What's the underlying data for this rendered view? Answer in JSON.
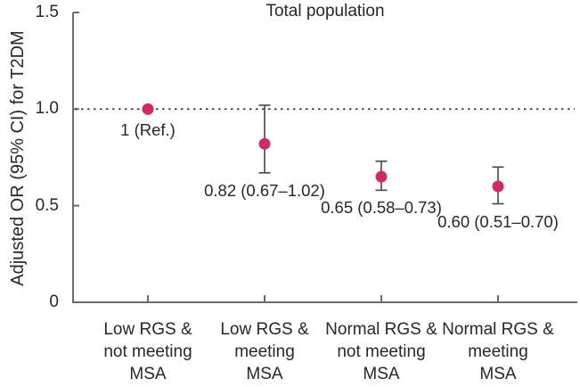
{
  "chart_data": {
    "type": "scatter",
    "title": "Total population",
    "ylabel": "Adjusted OR (95% CI) for T2DM",
    "xlabel": "",
    "ylim": [
      0,
      1.5
    ],
    "yticks": [
      {
        "v": 0,
        "label": "0"
      },
      {
        "v": 0.5,
        "label": "0.5"
      },
      {
        "v": 1.0,
        "label": "1.0"
      },
      {
        "v": 1.5,
        "label": "1.5"
      }
    ],
    "reference_line": 1.0,
    "grid": false,
    "legend": null,
    "categories": [
      "Low RGS &\nnot meeting\nMSA",
      "Low RGS &\nmeeting\nMSA",
      "Normal RGS &\nnot meeting\nMSA",
      "Normal RGS &\nmeeting\nMSA"
    ],
    "points": [
      {
        "category": "Low RGS & not meeting MSA",
        "or": 1.0,
        "ci_low": null,
        "ci_high": null,
        "label": "1 (Ref.)"
      },
      {
        "category": "Low RGS & meeting MSA",
        "or": 0.82,
        "ci_low": 0.67,
        "ci_high": 1.02,
        "label": "0.82 (0.67–1.02)"
      },
      {
        "category": "Normal RGS & not meeting MSA",
        "or": 0.65,
        "ci_low": 0.58,
        "ci_high": 0.73,
        "label": "0.65 (0.58–0.73)"
      },
      {
        "category": "Normal RGS & meeting MSA",
        "or": 0.6,
        "ci_low": 0.51,
        "ci_high": 0.7,
        "label": "0.60 (0.51–0.70)"
      }
    ],
    "colors": {
      "marker": "#d02a69",
      "axis": "#6f6b6c",
      "error_bar": "#4a4446",
      "reference_line": "#2b2b2b",
      "text": "#2b2627"
    }
  }
}
